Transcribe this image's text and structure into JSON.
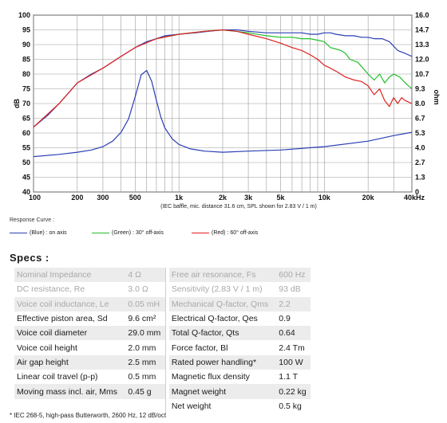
{
  "chart_data": {
    "type": "line",
    "x_scale": "log",
    "xlim": [
      100,
      40000
    ],
    "ylim_left": [
      40,
      100
    ],
    "ylim_right": [
      0,
      16.0
    ],
    "ylabel_left": "dB",
    "ylabel_right": "ohm",
    "x_ticks": [
      {
        "v": 100,
        "label": "100"
      },
      {
        "v": 200,
        "label": "200"
      },
      {
        "v": 300,
        "label": "300"
      },
      {
        "v": 500,
        "label": "500"
      },
      {
        "v": 1000,
        "label": "1k"
      },
      {
        "v": 2000,
        "label": "2k"
      },
      {
        "v": 3000,
        "label": "3k"
      },
      {
        "v": 5000,
        "label": "5k"
      },
      {
        "v": 10000,
        "label": "10k"
      },
      {
        "v": 20000,
        "label": "20k"
      },
      {
        "v": 40000,
        "label": "40kHz"
      }
    ],
    "y_ticks_left": [
      "100",
      "95",
      "90",
      "85",
      "80",
      "75",
      "70",
      "65",
      "60",
      "55",
      "50",
      "45",
      "40"
    ],
    "y_ticks_right": [
      "16.0",
      "14.7",
      "13.3",
      "12.0",
      "10.7",
      "9.3",
      "8.0",
      "6.7",
      "5.3",
      "4.0",
      "2.7",
      "1.3",
      "0"
    ],
    "note": "(IEC baffle, mic. distance 31.6 cm, SPL shown for 2.83 V / 1 m)",
    "series": [
      {
        "name": "(Blue) : on axis",
        "color": "#2b3fb5",
        "axis": "left",
        "x": [
          100,
          125,
          150,
          200,
          250,
          300,
          400,
          500,
          600,
          700,
          800,
          1000,
          1300,
          1600,
          2000,
          2500,
          3000,
          4000,
          5000,
          6000,
          7000,
          8000,
          9000,
          10000,
          11000,
          12000,
          14000,
          16000,
          18000,
          20000,
          22000,
          25000,
          28000,
          32000,
          36000,
          40000
        ],
        "y": [
          62,
          66,
          70,
          77,
          80,
          82,
          86,
          89,
          91,
          92,
          93,
          93.5,
          94,
          94.5,
          95,
          95,
          94.5,
          94,
          94,
          94,
          94,
          93.5,
          93.5,
          94,
          94,
          93.5,
          93,
          93,
          92.5,
          92.5,
          92,
          92,
          91,
          88,
          87,
          86
        ]
      },
      {
        "name": "(Green) : 30° off-axis",
        "color": "#22c02a",
        "axis": "left",
        "x": [
          700,
          1000,
          1500,
          2000,
          3000,
          4000,
          5000,
          6000,
          7000,
          8000,
          9000,
          10000,
          11000,
          12000,
          13000,
          14000,
          15000,
          17000,
          20000,
          22000,
          24000,
          26000,
          28000,
          30000,
          33000,
          36000,
          40000
        ],
        "y": [
          92,
          93.5,
          94.5,
          95,
          94,
          93,
          92.5,
          92.5,
          92,
          92,
          91.5,
          91,
          89,
          88.5,
          88,
          87,
          85,
          84,
          80,
          78,
          80,
          77,
          79,
          80,
          79,
          77,
          75
        ]
      },
      {
        "name": "(Red) : 60° off-axis",
        "color": "#e02020",
        "axis": "left",
        "x": [
          100,
          150,
          200,
          300,
          400,
          500,
          700,
          1000,
          1500,
          2000,
          2500,
          3000,
          4000,
          5000,
          6000,
          7000,
          8000,
          9000,
          10000,
          11000,
          12000,
          14000,
          16000,
          18000,
          20000,
          22000,
          24000,
          26000,
          28000,
          30000,
          32000,
          34000,
          36000,
          40000
        ],
        "y": [
          62,
          70,
          77,
          82,
          86,
          89,
          92,
          93.5,
          94.5,
          95,
          94.5,
          93.5,
          92,
          90.5,
          89,
          88,
          86.5,
          85,
          83,
          82,
          81,
          79,
          78,
          77.5,
          76,
          73,
          75,
          71,
          69,
          72,
          70,
          72,
          71,
          70
        ]
      },
      {
        "name": "impedance",
        "color": "#2b3fb5",
        "axis": "right",
        "x": [
          100,
          150,
          200,
          250,
          300,
          350,
          400,
          450,
          500,
          550,
          600,
          650,
          700,
          750,
          800,
          900,
          1000,
          1200,
          1500,
          2000,
          3000,
          5000,
          10000,
          20000,
          30000,
          40000
        ],
        "y": [
          3.2,
          3.4,
          3.6,
          3.8,
          4.1,
          4.6,
          5.4,
          6.6,
          8.6,
          10.6,
          11.0,
          10.0,
          8.3,
          6.8,
          5.8,
          4.8,
          4.3,
          3.9,
          3.7,
          3.6,
          3.7,
          3.8,
          4.1,
          4.6,
          5.1,
          5.4
        ]
      }
    ]
  },
  "legend": {
    "title": "Response Curve :",
    "items": [
      {
        "label": "(Blue) : on axis",
        "color": "#2b3fb5"
      },
      {
        "label": "(Green) : 30° off-axis",
        "color": "#22c02a"
      },
      {
        "label": "(Red) : 60° off-axis",
        "color": "#e02020"
      }
    ]
  },
  "specs": {
    "title": "Specs :",
    "rows": [
      {
        "l": "Nominal Impedance",
        "lv": "4 Ω",
        "r": "Free air resonance, Fs",
        "rv": "600 Hz",
        "faded": true
      },
      {
        "l": "DC resistance, Re",
        "lv": "3.0 Ω",
        "r": "Sensitivity (2.83 V / 1 m)",
        "rv": "93 dB",
        "faded": true
      },
      {
        "l": "Voice coil inductance, Le",
        "lv": "0.05 mH",
        "r": "Mechanical Q-factor, Qms",
        "rv": "2.2",
        "faded": true
      },
      {
        "l": "Effective piston area, Sd",
        "lv": "9.6 cm²",
        "r": "Electrical Q-factor, Qes",
        "rv": "0.9",
        "faded": false
      },
      {
        "l": "Voice coil diameter",
        "lv": "29.0 mm",
        "r": "Total Q-factor, Qts",
        "rv": "0.64",
        "faded": false
      },
      {
        "l": "Voice coil height",
        "lv": "2.0 mm",
        "r": "Force factor, Bl",
        "rv": "2.4 Tm",
        "faded": false
      },
      {
        "l": "Air gap height",
        "lv": "2.5 mm",
        "r": "Rated power handling*",
        "rv": "100 W",
        "faded": false
      },
      {
        "l": "Linear coil travel (p-p)",
        "lv": "0.5 mm",
        "r": "Magnetic flux density",
        "rv": "1.1 T",
        "faded": false
      },
      {
        "l": "Moving mass incl. air, Mms",
        "lv": "0.45 g",
        "r": "Magnet weight",
        "rv": "0.22 kg",
        "faded": false
      },
      {
        "l": "",
        "lv": "",
        "r": "Net weight",
        "rv": "0.5 kg",
        "faded": false
      }
    ]
  },
  "footnote": "* IEC 268-5, high-pass Butterworth, 2600 Hz, 12 dB/oct"
}
